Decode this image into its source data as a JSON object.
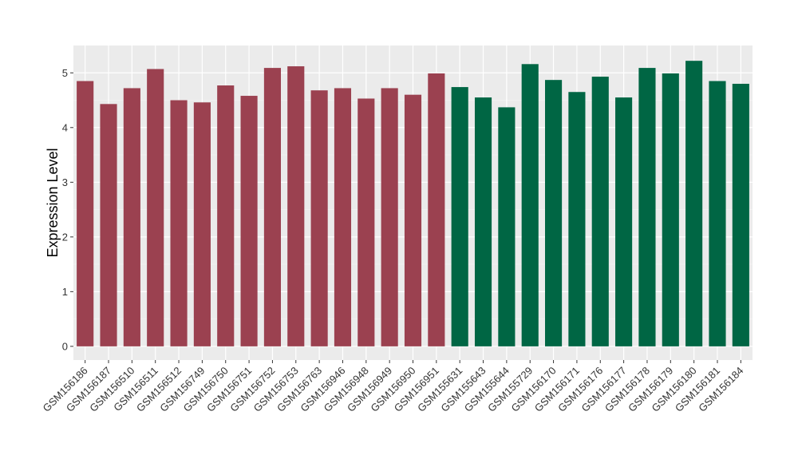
{
  "chart_data": {
    "type": "bar",
    "ylabel": "Expression Level",
    "xlabel": "",
    "ylim": [
      -0.25,
      5.5
    ],
    "y_ticks": [
      0,
      1,
      2,
      3,
      4,
      5
    ],
    "grid": true,
    "legend": "none",
    "categories": [
      "GSM156186",
      "GSM156187",
      "GSM156510",
      "GSM156511",
      "GSM156512",
      "GSM156749",
      "GSM156750",
      "GSM156751",
      "GSM156752",
      "GSM156753",
      "GSM156763",
      "GSM156946",
      "GSM156948",
      "GSM156949",
      "GSM156950",
      "GSM156951",
      "GSM155631",
      "GSM155643",
      "GSM155644",
      "GSM155729",
      "GSM156170",
      "GSM156171",
      "GSM156176",
      "GSM156177",
      "GSM156178",
      "GSM156179",
      "GSM156180",
      "GSM156181",
      "GSM156184"
    ],
    "values": [
      4.85,
      4.43,
      4.72,
      5.07,
      4.5,
      4.46,
      4.77,
      4.58,
      5.09,
      5.12,
      4.68,
      4.72,
      4.53,
      4.72,
      4.6,
      4.99,
      4.74,
      4.55,
      4.37,
      5.16,
      4.87,
      4.65,
      4.93,
      4.55,
      5.09,
      4.99,
      5.22,
      4.85,
      4.8
    ],
    "groups": [
      0,
      0,
      0,
      0,
      0,
      0,
      0,
      0,
      0,
      0,
      0,
      0,
      0,
      0,
      0,
      0,
      1,
      1,
      1,
      1,
      1,
      1,
      1,
      1,
      1,
      1,
      1,
      1,
      1
    ],
    "colors": [
      "#9B4150",
      "#006644"
    ]
  }
}
